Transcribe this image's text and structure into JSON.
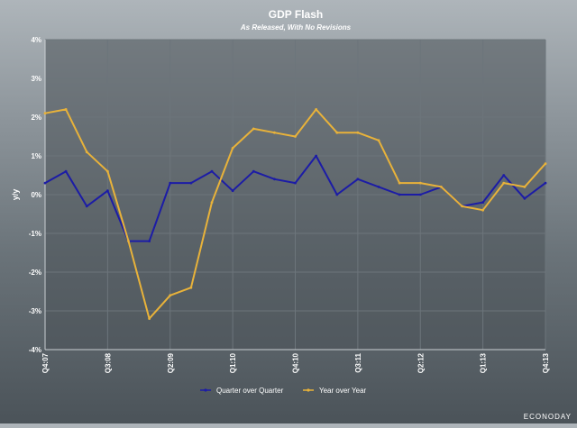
{
  "chart_data": {
    "type": "line",
    "title": "GDP Flash",
    "subtitle": "As Released, With No Revisions",
    "ylabel": "y/y",
    "xlabel": "",
    "ylim": [
      -4,
      4
    ],
    "yticks": [
      -4,
      -3,
      -2,
      -1,
      0,
      1,
      2,
      3,
      4
    ],
    "ytick_labels": [
      "-4%",
      "-3%",
      "-2%",
      "-1%",
      "0%",
      "1%",
      "2%",
      "3%",
      "4%"
    ],
    "x_count": 25,
    "xtick_labels": [
      {
        "index": 0,
        "label": "Q4:07"
      },
      {
        "index": 3,
        "label": "Q3:08"
      },
      {
        "index": 6,
        "label": "Q2:09"
      },
      {
        "index": 9,
        "label": "Q1:10"
      },
      {
        "index": 12,
        "label": "Q4:10"
      },
      {
        "index": 15,
        "label": "Q3:11"
      },
      {
        "index": 18,
        "label": "Q2:12"
      },
      {
        "index": 21,
        "label": "Q1:13"
      },
      {
        "index": 24,
        "label": "Q4:13"
      }
    ],
    "grid": true,
    "legend_position": "bottom-center",
    "series": [
      {
        "name": "Quarter over Quarter",
        "color": "#1c1ca6",
        "values": [
          0.3,
          0.6,
          -0.3,
          0.1,
          -1.2,
          -1.2,
          0.3,
          0.3,
          0.6,
          0.1,
          0.6,
          0.4,
          0.3,
          1.0,
          0.0,
          0.4,
          0.2,
          0.0,
          0.0,
          0.2,
          -0.3,
          -0.2,
          0.5,
          -0.1,
          0.3
        ]
      },
      {
        "name": "Year over Year",
        "color": "#e8b23a",
        "values": [
          2.1,
          2.2,
          1.1,
          0.6,
          -1.2,
          -3.2,
          -2.6,
          -2.4,
          -0.2,
          1.2,
          1.7,
          1.6,
          1.5,
          2.2,
          1.6,
          1.6,
          1.4,
          0.3,
          0.3,
          0.2,
          -0.3,
          -0.4,
          0.3,
          0.2,
          0.8
        ]
      }
    ]
  },
  "watermark": "ECONODAY",
  "colors": {
    "plot_bg": "#4a5258",
    "grid": "#6c757b",
    "axis": "#c9ced2"
  }
}
